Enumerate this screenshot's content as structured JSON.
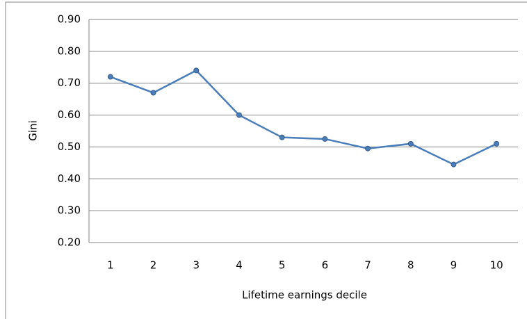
{
  "chart_data": {
    "type": "line",
    "y_label": "Gini",
    "x_label": "Lifetime earnings decile",
    "categories": [
      "1",
      "2",
      "3",
      "4",
      "5",
      "6",
      "7",
      "8",
      "9",
      "10"
    ],
    "series": [
      {
        "color": "#4a7ebb",
        "values": [
          0.72,
          0.67,
          0.74,
          0.6,
          0.53,
          0.525,
          0.495,
          0.51,
          0.445,
          0.51
        ]
      }
    ],
    "ylim": [
      0.2,
      0.9
    ],
    "yticks": [
      {
        "value": 0.2,
        "label": "0.20"
      },
      {
        "value": 0.3,
        "label": "0.30"
      },
      {
        "value": 0.4,
        "label": "0.40"
      },
      {
        "value": 0.5,
        "label": "0.50"
      },
      {
        "value": 0.6,
        "label": "0.60"
      },
      {
        "value": 0.7,
        "label": "0.70"
      },
      {
        "value": 0.8,
        "label": "0.80"
      },
      {
        "value": 0.9,
        "label": "0.90"
      }
    ],
    "grid": true
  }
}
